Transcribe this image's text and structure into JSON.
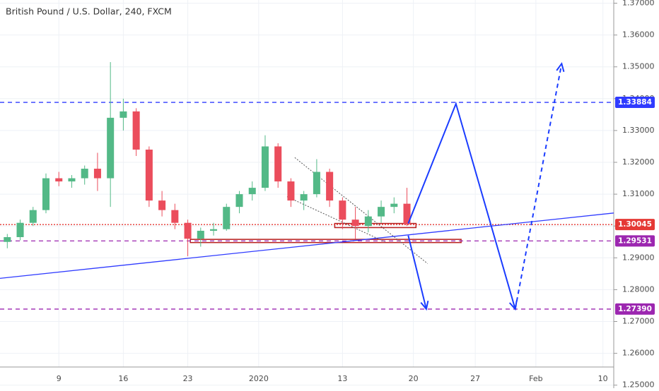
{
  "chart_data": {
    "type": "candlestick",
    "title": "British Pound / U.S. Dollar, 240, FXCM",
    "up_color": "#53b987",
    "down_color": "#eb4d5c",
    "grid": true,
    "x": [
      -4,
      -3,
      -2,
      -1,
      0,
      1,
      2,
      3,
      4,
      5,
      6,
      7,
      8,
      9,
      10,
      11,
      12,
      13,
      14,
      15,
      16,
      17,
      18,
      19,
      20,
      21,
      22,
      23,
      24,
      25,
      26,
      27
    ],
    "open": [
      1.295,
      1.2965,
      1.301,
      1.305,
      1.315,
      1.314,
      1.315,
      1.318,
      1.315,
      1.334,
      1.336,
      1.324,
      1.308,
      1.305,
      1.301,
      1.296,
      1.2985,
      1.299,
      1.306,
      1.31,
      1.312,
      1.325,
      1.314,
      1.308,
      1.31,
      1.317,
      1.308,
      1.302,
      1.3,
      1.303,
      1.306,
      1.307
    ],
    "high": [
      1.2975,
      1.302,
      1.306,
      1.3165,
      1.317,
      1.316,
      1.319,
      1.323,
      1.3515,
      1.34,
      1.337,
      1.325,
      1.311,
      1.307,
      1.302,
      1.2995,
      1.301,
      1.307,
      1.311,
      1.314,
      1.3285,
      1.326,
      1.315,
      1.311,
      1.321,
      1.318,
      1.309,
      1.306,
      1.305,
      1.308,
      1.309,
      1.312
    ],
    "low": [
      1.293,
      1.2955,
      1.3,
      1.304,
      1.3125,
      1.312,
      1.313,
      1.311,
      1.306,
      1.33,
      1.322,
      1.306,
      1.303,
      1.299,
      1.2905,
      1.2935,
      1.297,
      1.2985,
      1.304,
      1.308,
      1.311,
      1.312,
      1.306,
      1.305,
      1.309,
      1.306,
      1.299,
      1.296,
      1.298,
      1.301,
      1.304,
      1.3
    ],
    "close": [
      1.2965,
      1.301,
      1.305,
      1.315,
      1.314,
      1.315,
      1.318,
      1.315,
      1.334,
      1.336,
      1.324,
      1.308,
      1.305,
      1.301,
      1.296,
      1.2985,
      1.299,
      1.306,
      1.31,
      1.312,
      1.325,
      1.314,
      1.308,
      1.31,
      1.317,
      1.308,
      1.302,
      1.3,
      1.303,
      1.306,
      1.307,
      1.3005
    ],
    "xlim": [
      -4.565,
      43.04
    ],
    "ylim": [
      1.2557,
      1.371
    ],
    "xticks": [
      {
        "value": 0,
        "label": "9"
      },
      {
        "value": 5,
        "label": "16"
      },
      {
        "value": 10,
        "label": "23"
      },
      {
        "value": 15.5,
        "label": "2020"
      },
      {
        "value": 22,
        "label": "13"
      },
      {
        "value": 27.5,
        "label": "20"
      },
      {
        "value": 32.3,
        "label": "27"
      },
      {
        "value": 37,
        "label": "Feb"
      },
      {
        "value": 42.2,
        "label": "10"
      }
    ],
    "yticks": [
      {
        "value": 1.25,
        "label": "1.25000"
      },
      {
        "value": 1.26,
        "label": "1.26000"
      },
      {
        "value": 1.27,
        "label": "1.27000"
      },
      {
        "value": 1.28,
        "label": "1.28000"
      },
      {
        "value": 1.29,
        "label": "1.29000"
      },
      {
        "value": 1.3,
        "label": "1.30000"
      },
      {
        "value": 1.31,
        "label": "1.31000"
      },
      {
        "value": 1.32,
        "label": "1.32000"
      },
      {
        "value": 1.33,
        "label": "1.33000"
      },
      {
        "value": 1.34,
        "label": "1.34000"
      },
      {
        "value": 1.35,
        "label": "1.35000"
      },
      {
        "value": 1.36,
        "label": "1.36000"
      },
      {
        "value": 1.37,
        "label": "1.37000"
      }
    ],
    "levels": [
      {
        "value": 1.33884,
        "color": "#2f3bff",
        "style": "dashed"
      },
      {
        "value": 1.30045,
        "color": "#e53935",
        "style": "dotted"
      },
      {
        "value": 1.29531,
        "color": "#9c27b0",
        "style": "dashed"
      },
      {
        "value": 1.2739,
        "label": "1.27390",
        "color": "#9c27b0",
        "style": "dashed"
      }
    ],
    "trendline": {
      "color": "#2f3bff",
      "x": [
        -4.565,
        43.04
      ],
      "y": [
        1.28356,
        1.30408
      ]
    },
    "channel": {
      "color": "#555",
      "lines": [
        {
          "x": [
            18.3,
            28.6
          ],
          "y": [
            1.3215,
            1.2882
          ]
        },
        {
          "x": [
            17.7,
            25.3
          ],
          "y": [
            1.3092,
            1.295
          ]
        }
      ]
    },
    "zones": [
      {
        "color": "#b71c1c",
        "x": [
          21.4,
          27.7
        ],
        "y": [
          1.2995,
          1.3008
        ]
      },
      {
        "color": "#b71c1c",
        "x": [
          10.2,
          31.2
        ],
        "y": [
          1.2948,
          1.2958
        ]
      }
    ],
    "arrows": [
      {
        "color": "#1a3cff",
        "style": "solid",
        "x": [
          27.1,
          30.8,
          35.4
        ],
        "y": [
          1.3008,
          1.3384,
          1.2739
        ]
      },
      {
        "color": "#1a3cff",
        "style": "dashed",
        "x": [
          35.4,
          39.0
        ],
        "y": [
          1.2739,
          1.351
        ]
      },
      {
        "color": "#1a3cff",
        "style": "solid",
        "x": [
          27.1,
          28.5
        ],
        "y": [
          1.297,
          1.2739
        ]
      }
    ]
  }
}
